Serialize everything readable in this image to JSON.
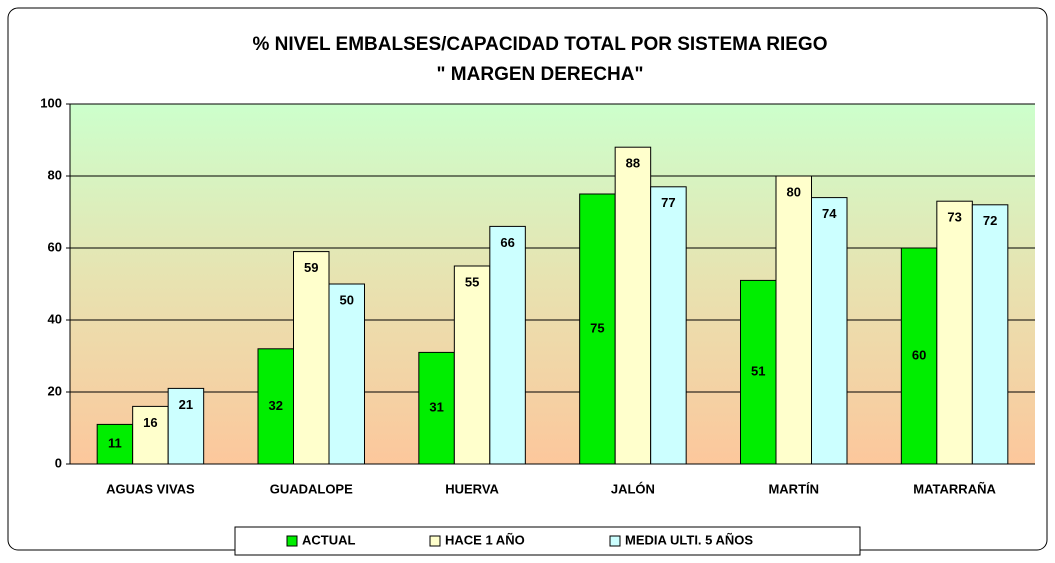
{
  "chart_data": {
    "type": "bar",
    "title": "% NIVEL EMBALSES/CAPACIDAD TOTAL POR SISTEMA  RIEGO",
    "subtitle": "\" MARGEN DERECHA\"",
    "categories": [
      "AGUAS VIVAS",
      "GUADALOPE",
      "HUERVA",
      "JALÓN",
      "MARTÍN",
      "MATARRAÑA"
    ],
    "series": [
      {
        "name": "ACTUAL",
        "color": "#00ee00",
        "values": [
          11,
          32,
          31,
          75,
          51,
          60
        ]
      },
      {
        "name": "HACE 1 AÑO",
        "color": "#ffffcc",
        "values": [
          16,
          59,
          55,
          88,
          80,
          73
        ]
      },
      {
        "name": "MEDIA  ULTI. 5 AÑOS",
        "color": "#ccffff",
        "values": [
          21,
          50,
          66,
          77,
          74,
          72
        ]
      }
    ],
    "ylim": [
      0,
      100
    ],
    "yticks": [
      0,
      20,
      40,
      60,
      80,
      100
    ],
    "grid": true,
    "legend": "bottom"
  }
}
